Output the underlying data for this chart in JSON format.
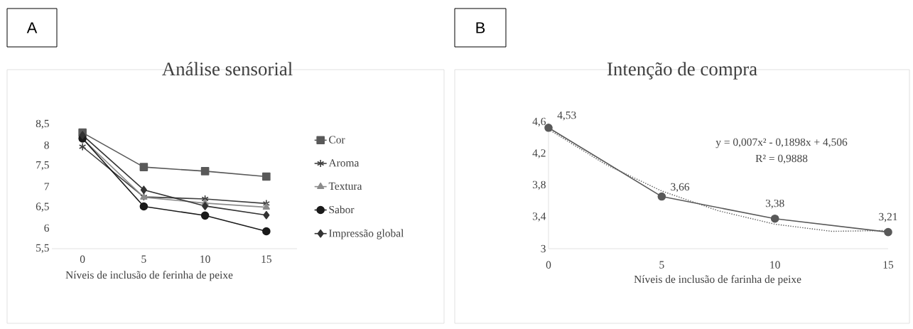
{
  "chart_data": [
    {
      "type": "line",
      "title": "Análise sensorial",
      "xlabel": "Níveis de inclusão de ferinha de peixe",
      "categories": [
        "0",
        "5",
        "10",
        "15"
      ],
      "ylim": [
        5.5,
        8.5
      ],
      "yticks": [
        {
          "value": 5.5,
          "label": "5,5"
        },
        6,
        {
          "value": 6.5,
          "label": "6,5"
        },
        7,
        {
          "value": 7.5,
          "label": "7,5"
        },
        8,
        {
          "value": 8.5,
          "label": "8,5"
        }
      ],
      "legend": "right",
      "annotations": [
        "A"
      ],
      "series": [
        {
          "name": "Cor",
          "color": "#595959",
          "marker": "square",
          "values": [
            8.3,
            7.47,
            7.37,
            7.24
          ]
        },
        {
          "name": "Aroma",
          "color": "#404040",
          "marker": "cross",
          "values": [
            7.96,
            6.75,
            6.7,
            6.59
          ]
        },
        {
          "name": "Textura",
          "color": "#8c8c8c",
          "marker": "triangle",
          "values": [
            8.15,
            6.74,
            6.6,
            6.5
          ]
        },
        {
          "name": "Sabor",
          "color": "#1a1a1a",
          "marker": "circle",
          "values": [
            8.16,
            6.52,
            6.3,
            5.92
          ]
        },
        {
          "name": "Impressão global",
          "color": "#333333",
          "marker": "diamond",
          "values": [
            8.24,
            6.92,
            6.53,
            6.31
          ]
        }
      ]
    },
    {
      "type": "line",
      "title": "Intenção de compra",
      "xlabel": "Níveis de inclusão de farinha de peixe",
      "x": [
        0,
        5,
        10,
        15
      ],
      "xlim": [
        0,
        15
      ],
      "xticks": [
        0,
        5,
        10,
        15
      ],
      "ylim": [
        3,
        4.6
      ],
      "yticks": [
        3,
        {
          "value": 3.4,
          "label": "3,4"
        },
        {
          "value": 3.8,
          "label": "3,8"
        },
        {
          "value": 4.2,
          "label": "4,2"
        },
        {
          "value": 4.6,
          "label": "4,6"
        }
      ],
      "annotations": [
        "B",
        "y = 0,007x² - 0,1898x + 4,506",
        "R² = 0,9888"
      ],
      "series": [
        {
          "color": "#595959",
          "marker": "circle",
          "values": [
            4.53,
            3.66,
            3.38,
            3.21
          ],
          "value_labels": [
            "4,53",
            "3,66",
            "3,38",
            "3,21"
          ]
        },
        {
          "type": "line",
          "color": "#595959",
          "marker": "none",
          "line_style": "dotted",
          "x": [
            0,
            2.5,
            5,
            7.5,
            10,
            12.5,
            15
          ],
          "values": [
            4.51,
            4.07,
            3.73,
            3.48,
            3.31,
            3.22,
            3.23
          ]
        }
      ]
    }
  ]
}
